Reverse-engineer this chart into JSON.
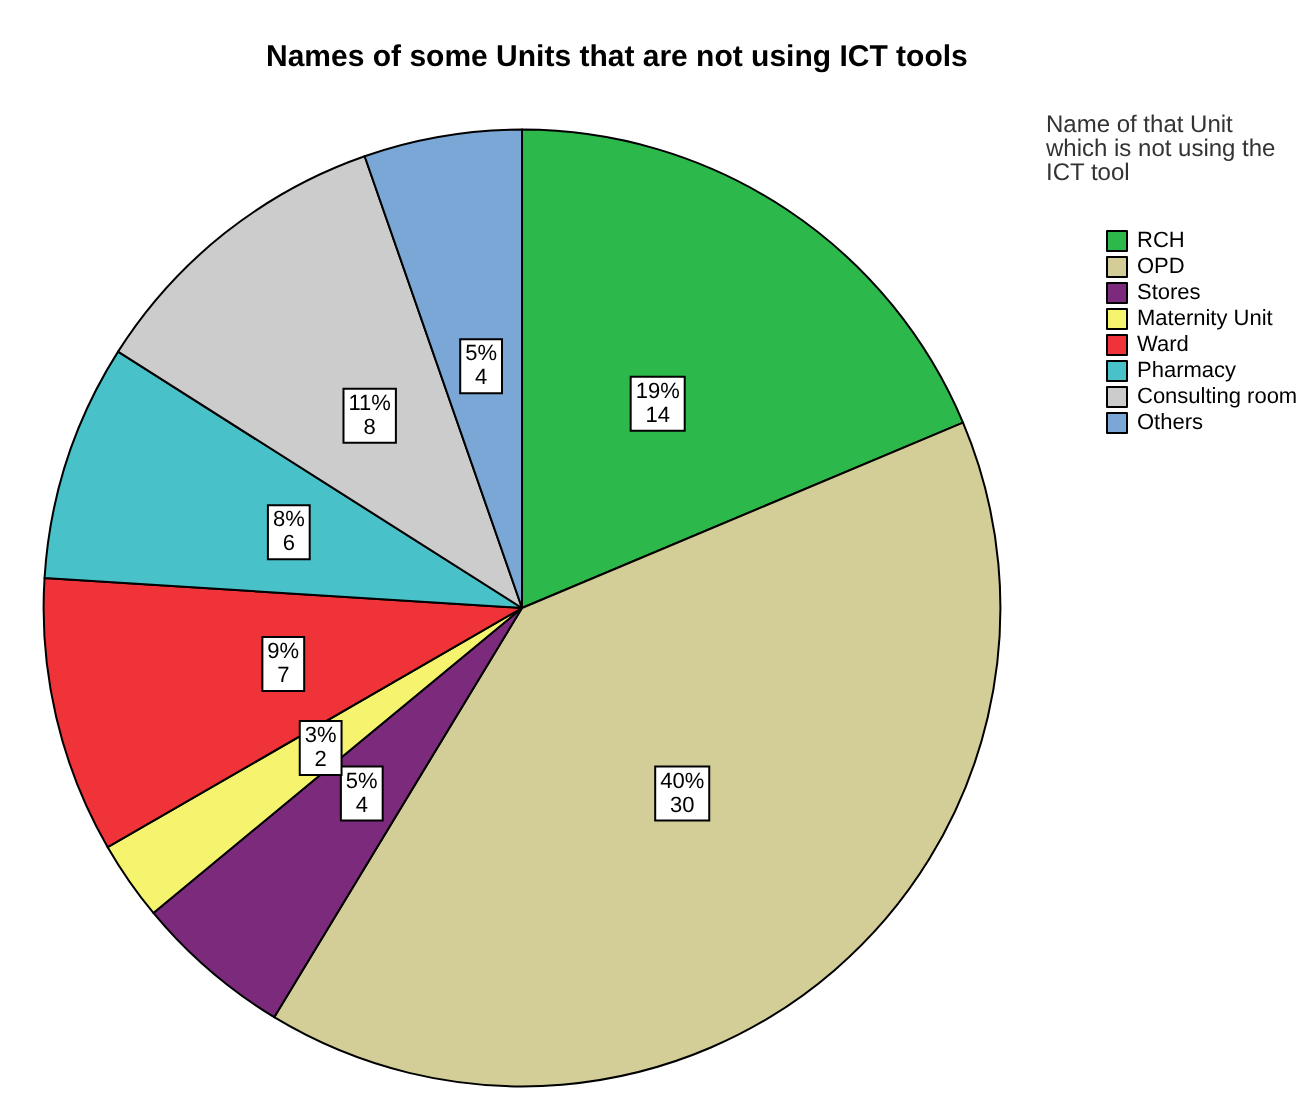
{
  "chart_data": {
    "type": "pie",
    "title": "Names of some Units that are not using ICT tools",
    "legend_title": "Name of that Unit which is not using the ICT tool",
    "categories": [
      "RCH",
      "OPD",
      "Stores",
      "Maternity Unit",
      "Ward",
      "Pharmacy",
      "Consulting room",
      "Others"
    ],
    "values": [
      14,
      30,
      4,
      2,
      7,
      6,
      8,
      4
    ],
    "value_labels": [
      "19%\n14",
      "40%\n30",
      "5%\n4",
      "3%\n2",
      "9%\n7",
      "8%\n6",
      "11%\n8",
      "5%\n4"
    ],
    "colors": [
      "#2db84b",
      "#d3ce97",
      "#7b2a7c",
      "#f6f46f",
      "#ef3338",
      "#48c1c8",
      "#cccccc",
      "#7aa7d6"
    ],
    "legend": "top right"
  }
}
